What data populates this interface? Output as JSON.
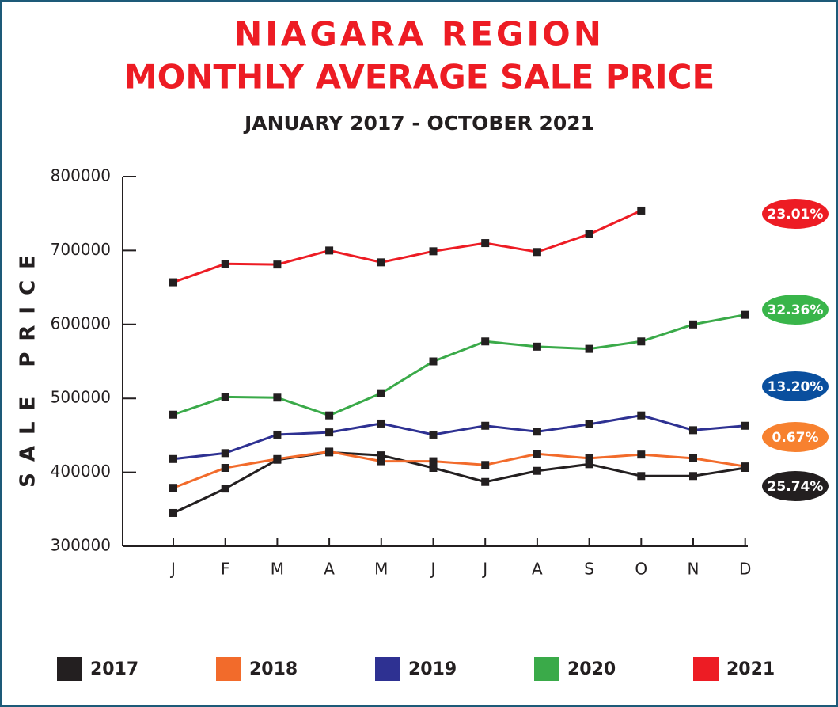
{
  "chart_data": {
    "type": "line",
    "title": [
      "NIAGARA REGION",
      "MONTHLY AVERAGE SALE PRICE"
    ],
    "subtitle": "JANUARY 2017 - OCTOBER 2021",
    "ylabel": "SALE PRICE",
    "title_color": "#ed1c24",
    "categories": [
      "J",
      "F",
      "M",
      "A",
      "M",
      "J",
      "J",
      "A",
      "S",
      "O",
      "N",
      "D"
    ],
    "series": [
      {
        "name": "2017",
        "color": "#231f20",
        "values": [
          345000,
          378000,
          417000,
          427000,
          423000,
          406000,
          387000,
          402000,
          411000,
          395000,
          395000,
          406000
        ]
      },
      {
        "name": "2018",
        "color": "#f26b2b",
        "values": [
          379000,
          406000,
          418000,
          428000,
          415000,
          415000,
          410000,
          425000,
          419000,
          424000,
          419000,
          408000
        ]
      },
      {
        "name": "2019",
        "color": "#2e3192",
        "values": [
          418000,
          426000,
          451000,
          454000,
          466000,
          451000,
          463000,
          455000,
          465000,
          477000,
          457000,
          463000
        ]
      },
      {
        "name": "2020",
        "color": "#3aaa49",
        "values": [
          478000,
          502000,
          501000,
          477000,
          507000,
          550000,
          577000,
          570000,
          567000,
          577000,
          600000,
          613000
        ]
      },
      {
        "name": "2021",
        "color": "#ed1c24",
        "values": [
          657000,
          682000,
          681000,
          700000,
          684000,
          699000,
          710000,
          698000,
          722000,
          754000,
          null,
          null
        ]
      }
    ],
    "marker_color": "#231f20",
    "ylim": [
      300000,
      800000
    ],
    "yticks": [
      300000,
      400000,
      500000,
      600000,
      700000,
      800000
    ],
    "annotations": [
      {
        "text": "23.01%",
        "color": "#ed1c24"
      },
      {
        "text": "32.36%",
        "color": "#39b54a"
      },
      {
        "text": "13.20%",
        "color": "#0a4f9e"
      },
      {
        "text": "0.67%",
        "color": "#f7812f"
      },
      {
        "text": "25.74%",
        "color": "#231f20"
      }
    ]
  }
}
